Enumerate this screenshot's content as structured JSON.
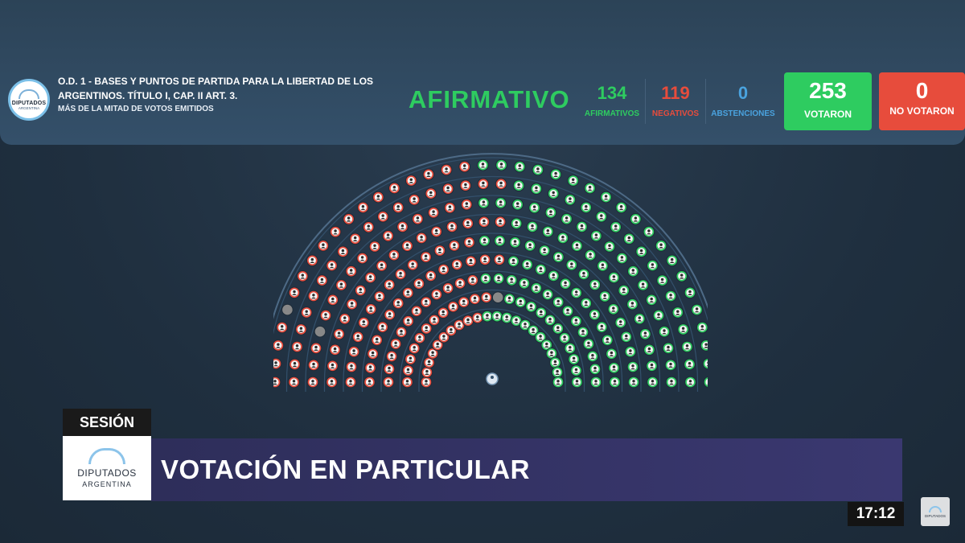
{
  "header": {
    "logo": {
      "line1": "DIPUTADOS",
      "line2": "ARGENTINA"
    },
    "title": "O.D. 1 - BASES Y PUNTOS DE PARTIDA PARA LA LIBERTAD DE LOS ARGENTINOS. TÍTULO I, CAP. II ART. 3.",
    "subtitle": "MÁS DE LA MITAD DE VOTOS EMITIDOS",
    "result": "AFIRMATIVO",
    "afirmativos": {
      "value": "134",
      "label": "AFIRMATIVOS"
    },
    "negativos": {
      "value": "119",
      "label": "NEGATIVOS"
    },
    "abstenciones": {
      "value": "0",
      "label": "ABSTENCIONES"
    },
    "votaron": {
      "value": "253",
      "label": "VOTARON"
    },
    "no_votaron": {
      "value": "0",
      "label": "NO VOTARON"
    }
  },
  "colors": {
    "afirmativo": "#2ecc60",
    "negativo": "#e74c3c",
    "abstencion": "#4aa3df",
    "empty_seat": "#888888"
  },
  "hemicycle": {
    "rows": [
      22,
      24,
      26,
      28,
      30,
      32,
      34,
      36,
      38
    ],
    "empty_seats": [
      [
        1,
        12
      ],
      [
        6,
        3
      ],
      [
        8,
        4
      ]
    ],
    "president_seat": true,
    "icon": "person-silhouette-icon"
  },
  "lower_third": {
    "tag": "SESIÓN",
    "logo": {
      "line1": "DIPUTADOS",
      "line2": "ARGENTINA"
    },
    "headline": "VOTACIÓN EN PARTICULAR",
    "time": "17:12",
    "watermark": {
      "line1": "DIPUTADOS",
      "line2": "ARGENTINA"
    }
  }
}
